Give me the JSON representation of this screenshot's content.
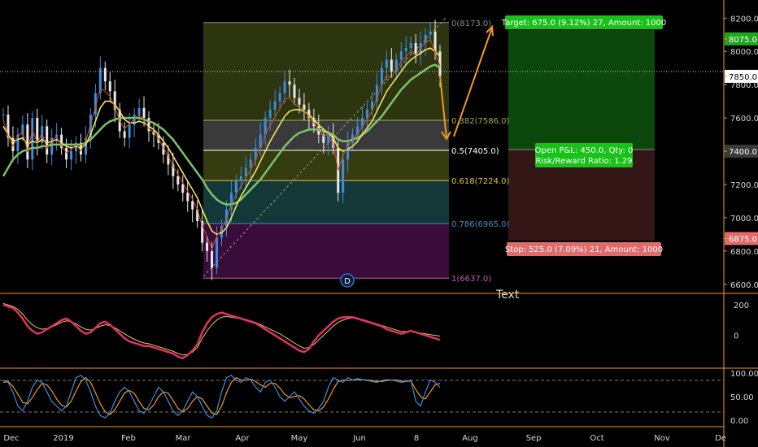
{
  "chart_data": {
    "type": "candlestick",
    "symbol_context": "BTC price chart with Fibonacci retracement and long position tool",
    "x_tick_labels": [
      "Dec",
      "2019",
      "Feb",
      "Mar",
      "Apr",
      "May",
      "Jun",
      "8",
      "Aug",
      "Sep",
      "Oct",
      "Nov",
      "De"
    ],
    "price_axis": {
      "ticks": [
        "8200.0",
        "8075.0",
        "8000.0",
        "7850.0",
        "7800.0",
        "7600.0",
        "7400.0",
        "7200.0",
        "7000.0",
        "6875.0",
        "6800.0",
        "6600.0"
      ],
      "ylim": [
        6560,
        8260
      ],
      "highlight_labels": [
        {
          "text": "8075.0",
          "value": 8075,
          "color": "#1fa51f"
        },
        {
          "text": "7850.0",
          "value": 7850,
          "color": "#ffffff"
        },
        {
          "text": "7400.0",
          "value": 7400,
          "color": "#3a3a3a"
        },
        {
          "text": "6875.0",
          "value": 6875,
          "color": "#e26a6a"
        }
      ]
    },
    "fibonacci": {
      "levels": [
        {
          "label": "0(8173.0)",
          "price": 8173,
          "color": "#8c8c8c"
        },
        {
          "label": "0.382(7586.0)",
          "price": 7586,
          "color": "#9bb24a"
        },
        {
          "label": "0.5(7405.0)",
          "price": 7405,
          "color": "#ffffff"
        },
        {
          "label": "0.618(7224.0)",
          "price": 7224,
          "color": "#e0c34a"
        },
        {
          "label": "0.786(6965.0)",
          "price": 6965,
          "color": "#4a8bbf"
        },
        {
          "label": "1(6637.0)",
          "price": 6637,
          "color": "#c75ab4"
        }
      ]
    },
    "position": {
      "target_label": "Target: 675.0 (9.12%) 27, Amount: 1000",
      "stop_label": "Stop: 525.0 (7.09%) 21, Amount: 1000",
      "open_label_line1": "Open P&L: 450.0, Qty: 0",
      "open_label_line2": "Risk/Reward Ratio: 1.29",
      "entry": 7400,
      "target": 8075,
      "stop": 6875
    },
    "annotations": {
      "event_marker": "D",
      "text_note": "Text"
    },
    "current_price": 7850,
    "series": [
      {
        "name": "price",
        "values": [
          7620,
          7480,
          7400,
          7500,
          7560,
          7350,
          7600,
          7450,
          7550,
          7380,
          7480,
          7500,
          7420,
          7350,
          7400,
          7450,
          7380,
          7480,
          7620,
          7750,
          7900,
          7820,
          7760,
          7650,
          7520,
          7480,
          7560,
          7620,
          7660,
          7600,
          7520,
          7500,
          7450,
          7380,
          7320,
          7250,
          7200,
          7150,
          7100,
          7050,
          6980,
          6850,
          6800,
          6700,
          6880,
          6950,
          7050,
          7150,
          7220,
          7250,
          7300,
          7350,
          7420,
          7500,
          7600,
          7650,
          7700,
          7750,
          7820,
          7800,
          7720,
          7680,
          7650,
          7600,
          7550,
          7500,
          7450,
          7500,
          7420,
          7150,
          7350,
          7450,
          7500,
          7550,
          7600,
          7650,
          7700,
          7800,
          7900,
          7950,
          7880,
          7950,
          8000,
          8020,
          8050,
          7980,
          8050,
          8100,
          8120,
          8000,
          7850
        ]
      },
      {
        "name": "ma_fast",
        "values": [
          7550,
          7500,
          7460,
          7470,
          7480,
          7440,
          7460,
          7450,
          7470,
          7450,
          7460,
          7470,
          7450,
          7430,
          7420,
          7430,
          7420,
          7440,
          7500,
          7580,
          7660,
          7700,
          7700,
          7680,
          7640,
          7590,
          7570,
          7570,
          7580,
          7570,
          7550,
          7530,
          7500,
          7460,
          7420,
          7370,
          7320,
          7270,
          7220,
          7170,
          7120,
          7050,
          6980,
          6920,
          6900,
          6910,
          6940,
          7000,
          7070,
          7130,
          7180,
          7230,
          7280,
          7340,
          7400,
          7460,
          7510,
          7560,
          7610,
          7640,
          7650,
          7650,
          7640,
          7620,
          7590,
          7560,
          7530,
          7510,
          7480,
          7420,
          7400,
          7410,
          7430,
          7460,
          7500,
          7540,
          7580,
          7640,
          7700,
          7760,
          7800,
          7840,
          7880,
          7920,
          7950,
          7970,
          7990,
          8010,
          8020,
          8000,
          7970
        ]
      },
      {
        "name": "ma_slow",
        "values": [
          7250,
          7300,
          7350,
          7380,
          7400,
          7410,
          7420,
          7420,
          7430,
          7430,
          7440,
          7440,
          7440,
          7440,
          7440,
          7440,
          7440,
          7450,
          7470,
          7500,
          7530,
          7560,
          7580,
          7590,
          7600,
          7600,
          7600,
          7600,
          7600,
          7590,
          7580,
          7570,
          7550,
          7530,
          7500,
          7470,
          7430,
          7390,
          7350,
          7310,
          7270,
          7230,
          7180,
          7140,
          7110,
          7090,
          7080,
          7080,
          7090,
          7110,
          7140,
          7170,
          7200,
          7230,
          7270,
          7310,
          7350,
          7390,
          7430,
          7460,
          7490,
          7510,
          7520,
          7530,
          7530,
          7530,
          7520,
          7510,
          7500,
          7470,
          7460,
          7460,
          7470,
          7480,
          7500,
          7520,
          7550,
          7580,
          7610,
          7650,
          7690,
          7730,
          7770,
          7800,
          7830,
          7850,
          7870,
          7890,
          7910,
          7920,
          7900
        ]
      }
    ],
    "oscillator1": {
      "axis_ticks": [
        "200",
        "0"
      ],
      "ylim": [
        -200,
        260
      ],
      "series": [
        {
          "name": "osc1_main",
          "values": [
            200,
            190,
            180,
            150,
            110,
            60,
            30,
            10,
            20,
            40,
            60,
            80,
            100,
            110,
            90,
            60,
            30,
            10,
            20,
            50,
            80,
            90,
            70,
            40,
            10,
            -20,
            -40,
            -50,
            -60,
            -70,
            -70,
            -80,
            -90,
            -100,
            -110,
            -120,
            -140,
            -150,
            -130,
            -100,
            -60,
            20,
            80,
            120,
            140,
            150,
            140,
            130,
            120,
            110,
            100,
            90,
            80,
            60,
            40,
            20,
            0,
            -20,
            -40,
            -60,
            -80,
            -100,
            -110,
            -90,
            -40,
            0,
            30,
            60,
            90,
            110,
            120,
            120,
            120,
            110,
            100,
            90,
            80,
            70,
            60,
            40,
            30,
            20,
            10,
            20,
            30,
            20,
            10,
            0,
            -10,
            -20,
            -30
          ]
        },
        {
          "name": "osc1_signal",
          "values": [
            210,
            200,
            190,
            170,
            140,
            100,
            70,
            50,
            40,
            45,
            55,
            70,
            85,
            95,
            90,
            75,
            55,
            40,
            35,
            45,
            60,
            70,
            65,
            50,
            30,
            10,
            -10,
            -25,
            -40,
            -50,
            -55,
            -65,
            -75,
            -85,
            -95,
            -105,
            -120,
            -130,
            -125,
            -110,
            -80,
            -20,
            30,
            70,
            100,
            120,
            125,
            120,
            115,
            110,
            105,
            95,
            85,
            70,
            55,
            40,
            25,
            10,
            -10,
            -30,
            -50,
            -70,
            -85,
            -80,
            -60,
            -30,
            0,
            30,
            60,
            85,
            100,
            110,
            115,
            110,
            105,
            95,
            85,
            75,
            65,
            55,
            45,
            35,
            25,
            25,
            25,
            20,
            15,
            10,
            5,
            0,
            -5
          ]
        }
      ]
    },
    "oscillator2": {
      "axis_ticks": [
        "100.00",
        "50.00",
        "0.00"
      ],
      "ylim": [
        -5,
        105
      ],
      "series": [
        {
          "name": "stoch_k",
          "values": [
            85,
            80,
            60,
            30,
            20,
            40,
            70,
            85,
            80,
            60,
            40,
            30,
            20,
            30,
            60,
            90,
            95,
            85,
            60,
            30,
            10,
            5,
            15,
            40,
            60,
            70,
            60,
            40,
            20,
            15,
            30,
            50,
            70,
            60,
            40,
            20,
            10,
            20,
            40,
            60,
            50,
            30,
            10,
            5,
            20,
            60,
            90,
            95,
            85,
            80,
            90,
            85,
            70,
            60,
            80,
            85,
            70,
            50,
            40,
            50,
            60,
            45,
            30,
            20,
            15,
            25,
            40,
            70,
            90,
            85,
            80,
            90,
            85,
            88,
            86,
            84,
            82,
            80,
            84,
            86,
            85,
            83,
            80,
            82,
            85,
            40,
            30,
            60,
            85,
            80,
            70
          ]
        },
        {
          "name": "stoch_d",
          "values": [
            80,
            82,
            72,
            55,
            38,
            35,
            48,
            65,
            78,
            75,
            62,
            45,
            32,
            28,
            40,
            62,
            82,
            90,
            80,
            58,
            35,
            18,
            12,
            22,
            40,
            58,
            63,
            57,
            40,
            25,
            22,
            32,
            50,
            60,
            57,
            42,
            25,
            18,
            25,
            40,
            50,
            45,
            30,
            15,
            12,
            30,
            58,
            80,
            90,
            85,
            84,
            87,
            82,
            75,
            70,
            78,
            78,
            68,
            55,
            48,
            50,
            52,
            45,
            33,
            22,
            20,
            28,
            45,
            65,
            82,
            85,
            84,
            85,
            86,
            86,
            85,
            84,
            82,
            82,
            84,
            85,
            85,
            83,
            82,
            83,
            65,
            50,
            45,
            60,
            75,
            78
          ]
        }
      ]
    }
  }
}
